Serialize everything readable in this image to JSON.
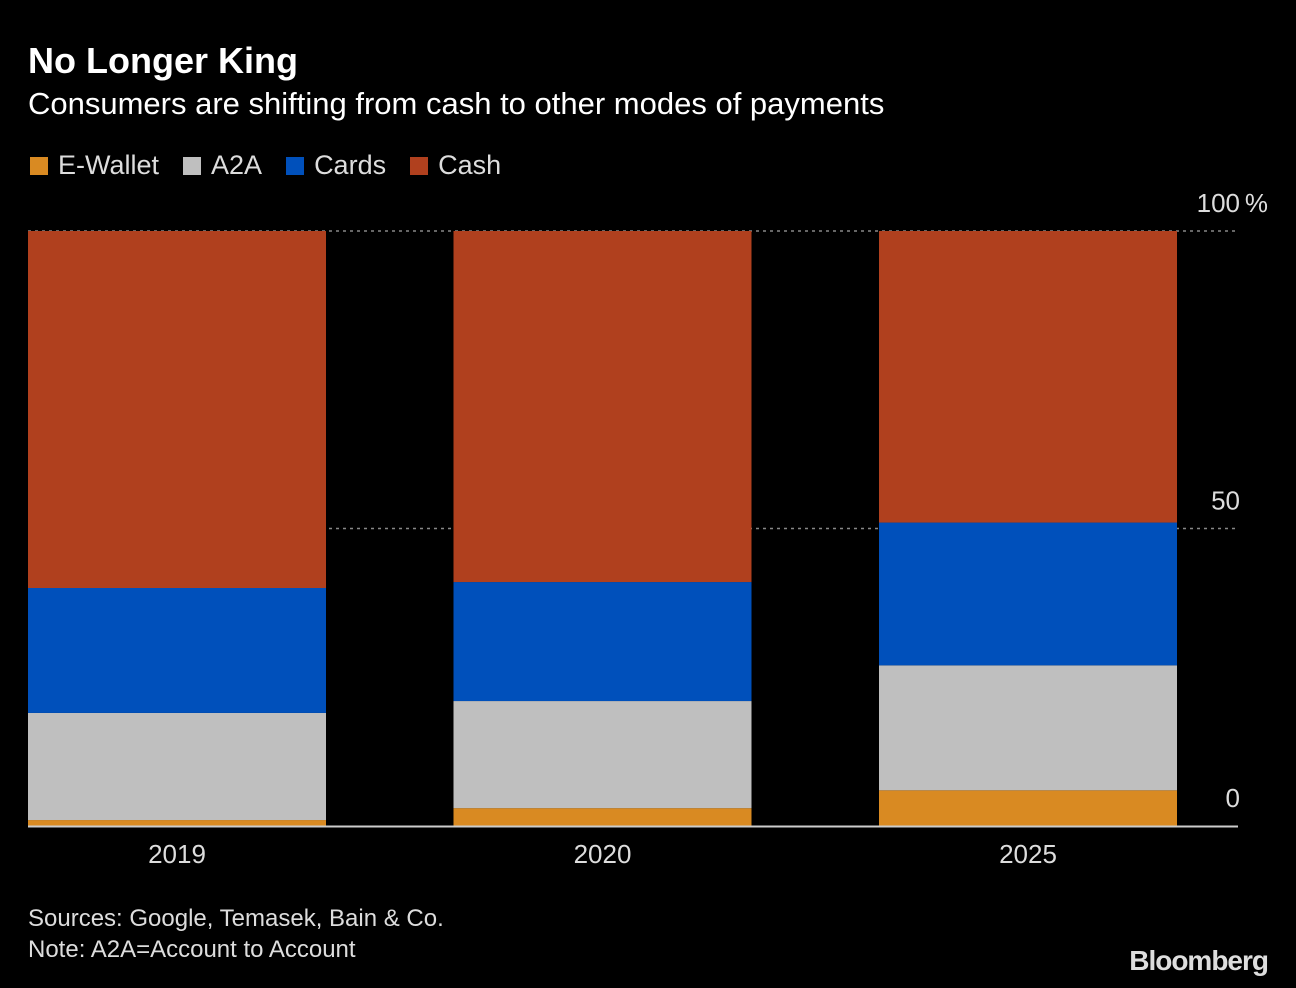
{
  "title": "No Longer King",
  "subtitle": "Consumers are shifting from cash to other modes of payments",
  "footer": {
    "sources": "Sources: Google, Temasek, Bain & Co.",
    "note": "Note: A2A=Account to Account"
  },
  "logo": "Bloomberg",
  "chart_data": {
    "type": "bar",
    "stacked": true,
    "categories": [
      "2019",
      "2020",
      "2025"
    ],
    "series": [
      {
        "name": "E-Wallet",
        "color": "#d98a22",
        "values": [
          1,
          3,
          6
        ]
      },
      {
        "name": "A2A",
        "color": "#bfbfbf",
        "values": [
          18,
          18,
          21
        ]
      },
      {
        "name": "Cards",
        "color": "#0050bb",
        "values": [
          21,
          20,
          24
        ]
      },
      {
        "name": "Cash",
        "color": "#b0401e",
        "values": [
          60,
          59,
          49
        ]
      }
    ],
    "ylim": [
      0,
      100
    ],
    "yticks": [
      0,
      50,
      100
    ],
    "yunit": "%",
    "grid": true,
    "legend": "top-left",
    "yaxis_side": "right"
  }
}
